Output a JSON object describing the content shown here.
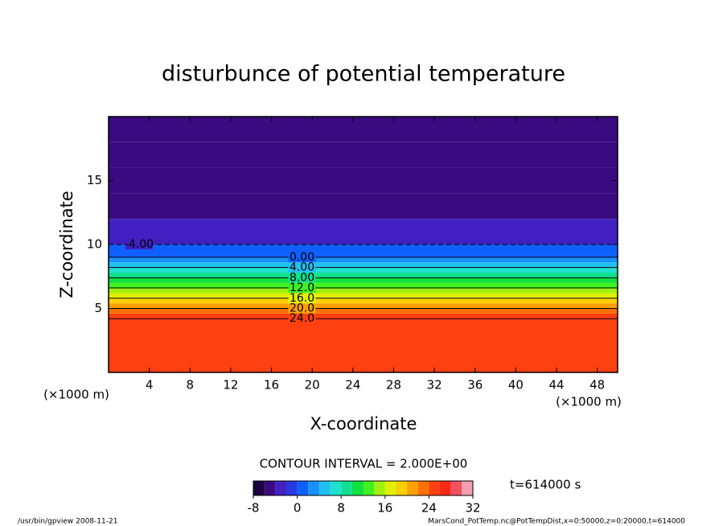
{
  "chart_data": {
    "type": "contour",
    "title": "disturbunce of potential temperature",
    "x_label": "X-coordinate",
    "y_label": "Z-coordinate",
    "x_unit": "(×1000 m)",
    "x_unit_right": "(×1000 m)",
    "xlim": [
      0,
      50
    ],
    "xticks": [
      4,
      8,
      12,
      16,
      20,
      24,
      28,
      32,
      36,
      40,
      44,
      48
    ],
    "ylim": [
      0,
      20
    ],
    "yticks": [
      5,
      10,
      15
    ],
    "z": [
      0,
      4.2,
      4.6,
      5.0,
      5.4,
      5.8,
      6.2,
      6.6,
      7.0,
      7.4,
      7.8,
      8.2,
      8.6,
      9.0,
      10,
      12,
      14,
      16,
      18
    ],
    "values": [
      25,
      24,
      22,
      20,
      18,
      16,
      14,
      12,
      10,
      8,
      6,
      4,
      2,
      0,
      -4,
      -5,
      -6,
      -6,
      -5
    ],
    "contour_levels": [
      24,
      20,
      16,
      12,
      8,
      4,
      0,
      -4
    ],
    "contour_labels": [
      "24.0",
      "20.0",
      "16.0",
      "12.0",
      "8.00",
      "4.00",
      "0.00",
      "-4.00"
    ],
    "interval_text": "CONTOUR INTERVAL = 2.000E+00",
    "clim": [
      -8,
      32
    ],
    "cticks": [
      -8,
      0,
      8,
      16,
      24,
      32
    ],
    "colormap": [
      "#1a0040",
      "#3a0a80",
      "#4020c0",
      "#2838e0",
      "#1060ff",
      "#1890ff",
      "#20c0f0",
      "#20e0d0",
      "#10e090",
      "#10e040",
      "#40f020",
      "#a0f010",
      "#e0f000",
      "#f8d000",
      "#ffa000",
      "#ff7000",
      "#ff4010",
      "#f82818",
      "#f05060",
      "#f0a0b0"
    ],
    "time_text": "t=614000 s",
    "footer_left": "/usr/bin/gpview  2008-11-21",
    "footer_right": "MarsCond_PotTemp.nc@PotTempDist,x=0:50000,z=0:20000,t=614000"
  }
}
